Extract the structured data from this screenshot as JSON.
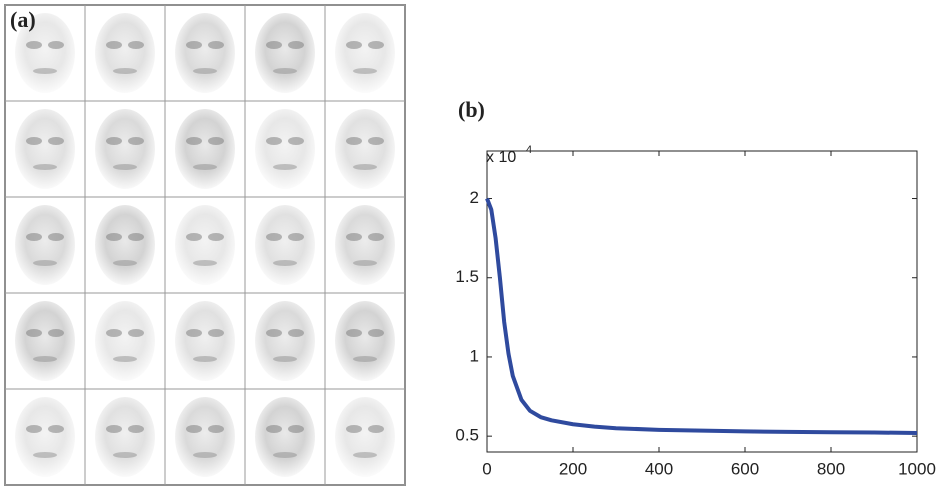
{
  "image_panel": {
    "label": "(a)"
  },
  "chart_data": {
    "type": "line",
    "panel_label": "(b)",
    "ylabel": "x 10",
    "ylabel_exponent": "4",
    "x": [
      0,
      10,
      20,
      30,
      40,
      50,
      60,
      80,
      100,
      125,
      150,
      200,
      250,
      300,
      400,
      500,
      600,
      700,
      800,
      900,
      1000
    ],
    "series": [
      {
        "color": "#2f4a9e",
        "values": [
          2.0,
          1.93,
          1.75,
          1.5,
          1.22,
          1.02,
          0.88,
          0.73,
          0.66,
          0.62,
          0.6,
          0.575,
          0.56,
          0.55,
          0.54,
          0.535,
          0.53,
          0.527,
          0.525,
          0.523,
          0.52
        ]
      }
    ],
    "xlim": [
      0,
      1000
    ],
    "xticks": [
      0,
      200,
      400,
      600,
      800,
      1000
    ],
    "ylim": [
      0.4,
      2.3
    ],
    "yticks": [
      0.5,
      1,
      1.5,
      2
    ]
  }
}
